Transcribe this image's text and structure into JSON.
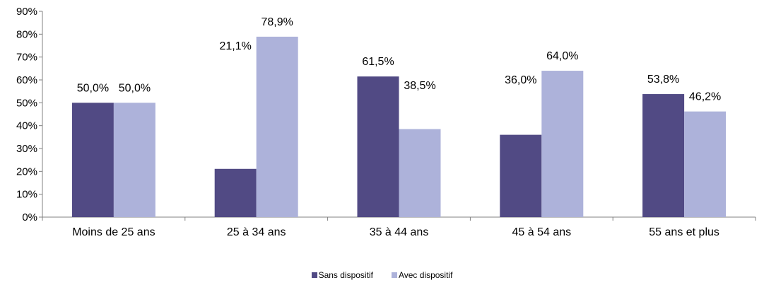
{
  "chart_data": {
    "type": "bar",
    "categories": [
      "Moins de 25 ans",
      "25 à 34 ans",
      "35 à 44 ans",
      "45 à 54 ans",
      "55 ans et plus"
    ],
    "series": [
      {
        "name": "Sans dispositif",
        "color": "#514A84",
        "values": [
          50.0,
          21.1,
          61.5,
          36.0,
          53.8
        ],
        "labels": [
          "50,0%",
          "21,1%",
          "61,5%",
          "36,0%",
          "53,8%"
        ]
      },
      {
        "name": "Avec dispositif",
        "color": "#ADB2DA",
        "values": [
          50.0,
          78.9,
          38.5,
          64.0,
          46.2
        ],
        "labels": [
          "50,0%",
          "78,9%",
          "38,5%",
          "64,0%",
          "46,2%"
        ]
      }
    ],
    "y_ticks": [
      "0%",
      "10%",
      "20%",
      "30%",
      "40%",
      "50%",
      "60%",
      "70%",
      "80%",
      "90%"
    ],
    "ylim": [
      0,
      90
    ],
    "grid": false,
    "legend_position": "bottom",
    "title": "",
    "xlabel": "",
    "ylabel": ""
  }
}
